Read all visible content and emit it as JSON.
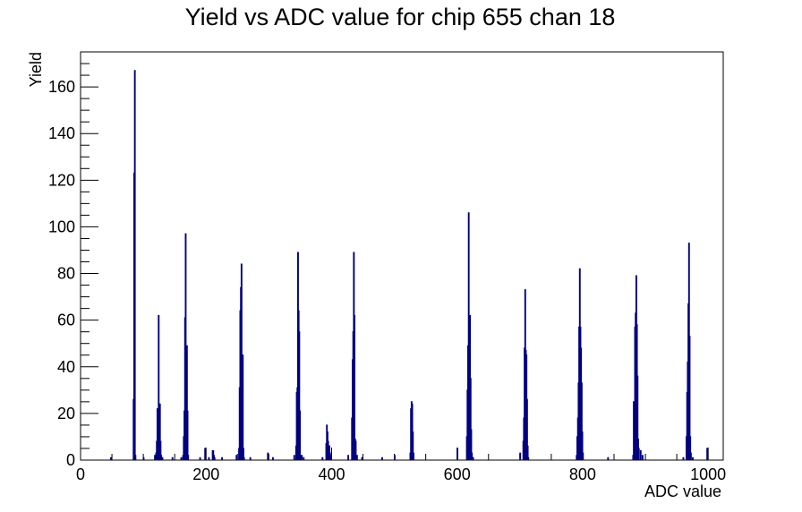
{
  "chart_data": {
    "type": "bar",
    "title": "Yield vs ADC value for chip 655 chan 18",
    "xlabel": "ADC value",
    "ylabel": "Yield",
    "xlim": [
      0,
      1024
    ],
    "ylim": [
      0,
      175
    ],
    "x_ticks": [
      0,
      200,
      400,
      600,
      800,
      1000
    ],
    "y_ticks": [
      0,
      20,
      40,
      60,
      80,
      100,
      120,
      140,
      160
    ],
    "bin_width": 1,
    "line_color": "#000080",
    "points": [
      [
        48,
        1
      ],
      [
        84,
        26
      ],
      [
        85,
        123
      ],
      [
        86,
        167
      ],
      [
        87,
        2
      ],
      [
        100,
        1
      ],
      [
        118,
        2
      ],
      [
        120,
        3
      ],
      [
        121,
        8
      ],
      [
        122,
        22
      ],
      [
        123,
        21
      ],
      [
        124,
        62
      ],
      [
        125,
        24
      ],
      [
        126,
        24
      ],
      [
        127,
        8
      ],
      [
        128,
        2
      ],
      [
        130,
        1
      ],
      [
        146,
        1
      ],
      [
        160,
        1
      ],
      [
        163,
        2
      ],
      [
        164,
        10
      ],
      [
        165,
        21
      ],
      [
        166,
        61
      ],
      [
        167,
        97
      ],
      [
        168,
        42
      ],
      [
        169,
        49
      ],
      [
        170,
        21
      ],
      [
        171,
        2
      ],
      [
        190,
        1
      ],
      [
        198,
        5
      ],
      [
        204,
        1
      ],
      [
        210,
        4
      ],
      [
        211,
        4
      ],
      [
        212,
        2
      ],
      [
        213,
        1
      ],
      [
        225,
        1
      ],
      [
        248,
        2
      ],
      [
        252,
        5
      ],
      [
        253,
        31
      ],
      [
        254,
        64
      ],
      [
        255,
        74
      ],
      [
        256,
        84
      ],
      [
        257,
        37
      ],
      [
        258,
        45
      ],
      [
        259,
        5
      ],
      [
        260,
        1
      ],
      [
        270,
        1
      ],
      [
        298,
        3
      ],
      [
        306,
        1
      ],
      [
        340,
        2
      ],
      [
        343,
        6
      ],
      [
        344,
        29
      ],
      [
        345,
        31
      ],
      [
        346,
        89
      ],
      [
        347,
        64
      ],
      [
        348,
        55
      ],
      [
        349,
        21
      ],
      [
        350,
        2
      ],
      [
        352,
        2
      ],
      [
        355,
        1
      ],
      [
        385,
        1
      ],
      [
        391,
        7
      ],
      [
        392,
        15
      ],
      [
        393,
        12
      ],
      [
        394,
        8
      ],
      [
        395,
        6
      ],
      [
        396,
        6
      ],
      [
        397,
        3
      ],
      [
        398,
        2
      ],
      [
        426,
        2
      ],
      [
        432,
        18
      ],
      [
        433,
        43
      ],
      [
        434,
        55
      ],
      [
        435,
        89
      ],
      [
        436,
        62
      ],
      [
        437,
        9
      ],
      [
        438,
        8
      ],
      [
        440,
        2
      ],
      [
        448,
        1
      ],
      [
        480,
        1
      ],
      [
        500,
        2
      ],
      [
        525,
        3
      ],
      [
        526,
        22
      ],
      [
        527,
        25
      ],
      [
        528,
        24
      ],
      [
        529,
        12
      ],
      [
        530,
        3
      ],
      [
        600,
        5
      ],
      [
        615,
        10
      ],
      [
        616,
        30
      ],
      [
        617,
        49
      ],
      [
        618,
        106
      ],
      [
        619,
        33
      ],
      [
        620,
        62
      ],
      [
        621,
        35
      ],
      [
        622,
        13
      ],
      [
        623,
        3
      ],
      [
        625,
        1
      ],
      [
        700,
        3
      ],
      [
        705,
        8
      ],
      [
        706,
        18
      ],
      [
        707,
        48
      ],
      [
        708,
        73
      ],
      [
        709,
        47
      ],
      [
        710,
        45
      ],
      [
        711,
        26
      ],
      [
        712,
        6
      ],
      [
        713,
        1
      ],
      [
        790,
        2
      ],
      [
        791,
        10
      ],
      [
        792,
        18
      ],
      [
        793,
        33
      ],
      [
        794,
        57
      ],
      [
        795,
        82
      ],
      [
        796,
        57
      ],
      [
        797,
        48
      ],
      [
        798,
        33
      ],
      [
        799,
        12
      ],
      [
        800,
        3
      ],
      [
        840,
        1
      ],
      [
        880,
        2
      ],
      [
        881,
        25
      ],
      [
        882,
        22
      ],
      [
        883,
        57
      ],
      [
        884,
        63
      ],
      [
        885,
        79
      ],
      [
        886,
        58
      ],
      [
        887,
        36
      ],
      [
        888,
        9
      ],
      [
        889,
        5
      ],
      [
        892,
        4
      ],
      [
        895,
        2
      ],
      [
        960,
        1
      ],
      [
        965,
        10
      ],
      [
        966,
        29
      ],
      [
        967,
        42
      ],
      [
        968,
        67
      ],
      [
        969,
        93
      ],
      [
        970,
        53
      ],
      [
        971,
        10
      ],
      [
        972,
        3
      ],
      [
        975,
        1
      ],
      [
        998,
        5
      ]
    ]
  }
}
